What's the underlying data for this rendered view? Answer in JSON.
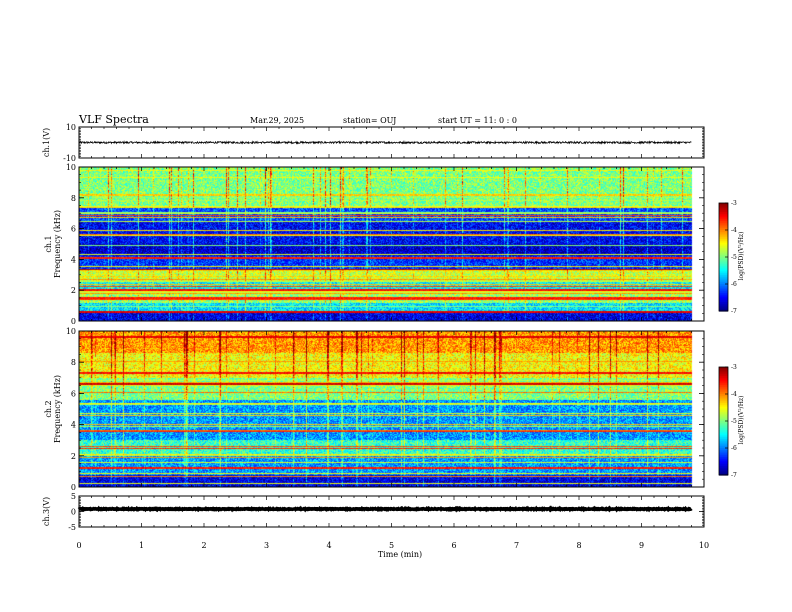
{
  "header": {
    "title": "VLF Spectra",
    "date": "Mar.29, 2025",
    "station": "station= OUJ",
    "start": "start  UT =   11: 0  : 0"
  },
  "chart_data": {
    "type": "heatmap",
    "x_range": [
      0,
      10
    ],
    "x_ticks": [
      "0",
      "1",
      "2",
      "3",
      "4",
      "5",
      "6",
      "7",
      "8",
      "9",
      "10"
    ],
    "xlabel": "Time  (min)",
    "panels": [
      {
        "id": "ch1-waveform",
        "type": "line",
        "ylabel": "ch.1(V)",
        "ylim": [
          -10,
          10
        ],
        "y_ticks": [
          "10",
          "-10"
        ],
        "signal_level": 0,
        "signal_end_min": 9.8
      },
      {
        "id": "ch1-spectrogram",
        "type": "heatmap",
        "channel_label": "ch.1",
        "ylabel": "Frequency  (kHz)",
        "ylim": [
          0,
          10
        ],
        "y_ticks": [
          "0",
          "2",
          "4",
          "6",
          "8",
          "10"
        ],
        "data_end_min": 9.8,
        "colorbar": {
          "label": "log(PSD)(V²/Hz)",
          "range": [
            -7,
            -3
          ],
          "ticks": [
            "-3",
            "-4",
            "-5",
            "-6",
            "-7"
          ]
        },
        "background_log_psd": -5.8,
        "profile": [
          {
            "f": [
              0,
              0.6
            ],
            "v": -6.6
          },
          {
            "f": [
              0.6,
              1.2
            ],
            "v": -5.6
          },
          {
            "f": [
              1.2,
              1.8
            ],
            "v": -4.9
          },
          {
            "f": [
              1.8,
              2.6
            ],
            "v": -5.5
          },
          {
            "f": [
              2.6,
              3.4
            ],
            "v": -4.7
          },
          {
            "f": [
              3.4,
              4.2
            ],
            "v": -6.3
          },
          {
            "f": [
              4.2,
              5.0
            ],
            "v": -6.7
          },
          {
            "f": [
              5.0,
              6.4
            ],
            "v": -6.5
          },
          {
            "f": [
              6.4,
              7.4
            ],
            "v": -6.2
          },
          {
            "f": [
              7.4,
              10
            ],
            "v": -5.0
          }
        ],
        "lines": [
          {
            "f": 0.6,
            "v": -3.4
          },
          {
            "f": 1.5,
            "v": -3.6
          },
          {
            "f": 2.0,
            "v": -3.5
          },
          {
            "f": 2.9,
            "v": -3.3
          },
          {
            "f": 3.3,
            "v": -3.2
          },
          {
            "f": 4.1,
            "v": -3.6
          },
          {
            "f": 5.6,
            "v": -4.4
          },
          {
            "f": 7.0,
            "v": -3.4
          },
          {
            "f": 8.2,
            "v": -4.3
          }
        ]
      },
      {
        "id": "ch2-spectrogram",
        "type": "heatmap",
        "channel_label": "ch.2",
        "ylabel": "Frequency  (kHz)",
        "ylim": [
          0,
          10
        ],
        "y_ticks": [
          "0",
          "2",
          "4",
          "6",
          "8",
          "10"
        ],
        "data_end_min": 9.8,
        "colorbar": {
          "label": "log(PSD)(V²/Hz)",
          "range": [
            -7,
            -3
          ],
          "ticks": [
            "-3",
            "-4",
            "-5",
            "-6",
            "-7"
          ]
        },
        "background_log_psd": -5.8,
        "profile": [
          {
            "f": [
              0,
              0.8
            ],
            "v": -6.6
          },
          {
            "f": [
              0.8,
              2.0
            ],
            "v": -5.9
          },
          {
            "f": [
              2.0,
              3.0
            ],
            "v": -5.3
          },
          {
            "f": [
              3.0,
              5.6
            ],
            "v": -5.9
          },
          {
            "f": [
              5.6,
              7.0
            ],
            "v": -5.0
          },
          {
            "f": [
              7.0,
              8.6
            ],
            "v": -4.5
          },
          {
            "f": [
              8.6,
              10
            ],
            "v": -4.1
          }
        ],
        "lines": [
          {
            "f": 1.2,
            "v": -3.6
          },
          {
            "f": 2.6,
            "v": -3.8
          },
          {
            "f": 3.6,
            "v": -3.9
          },
          {
            "f": 6.6,
            "v": -3.3
          },
          {
            "f": 7.3,
            "v": -3.5
          },
          {
            "f": 9.6,
            "v": -3.4
          }
        ]
      },
      {
        "id": "ch3-waveform",
        "type": "line",
        "ylabel": "ch.3(V)",
        "ylim": [
          -5,
          5
        ],
        "y_ticks": [
          "5",
          "0",
          "-5"
        ],
        "signal_level": 0.8,
        "signal_end_min": 9.8
      }
    ]
  }
}
